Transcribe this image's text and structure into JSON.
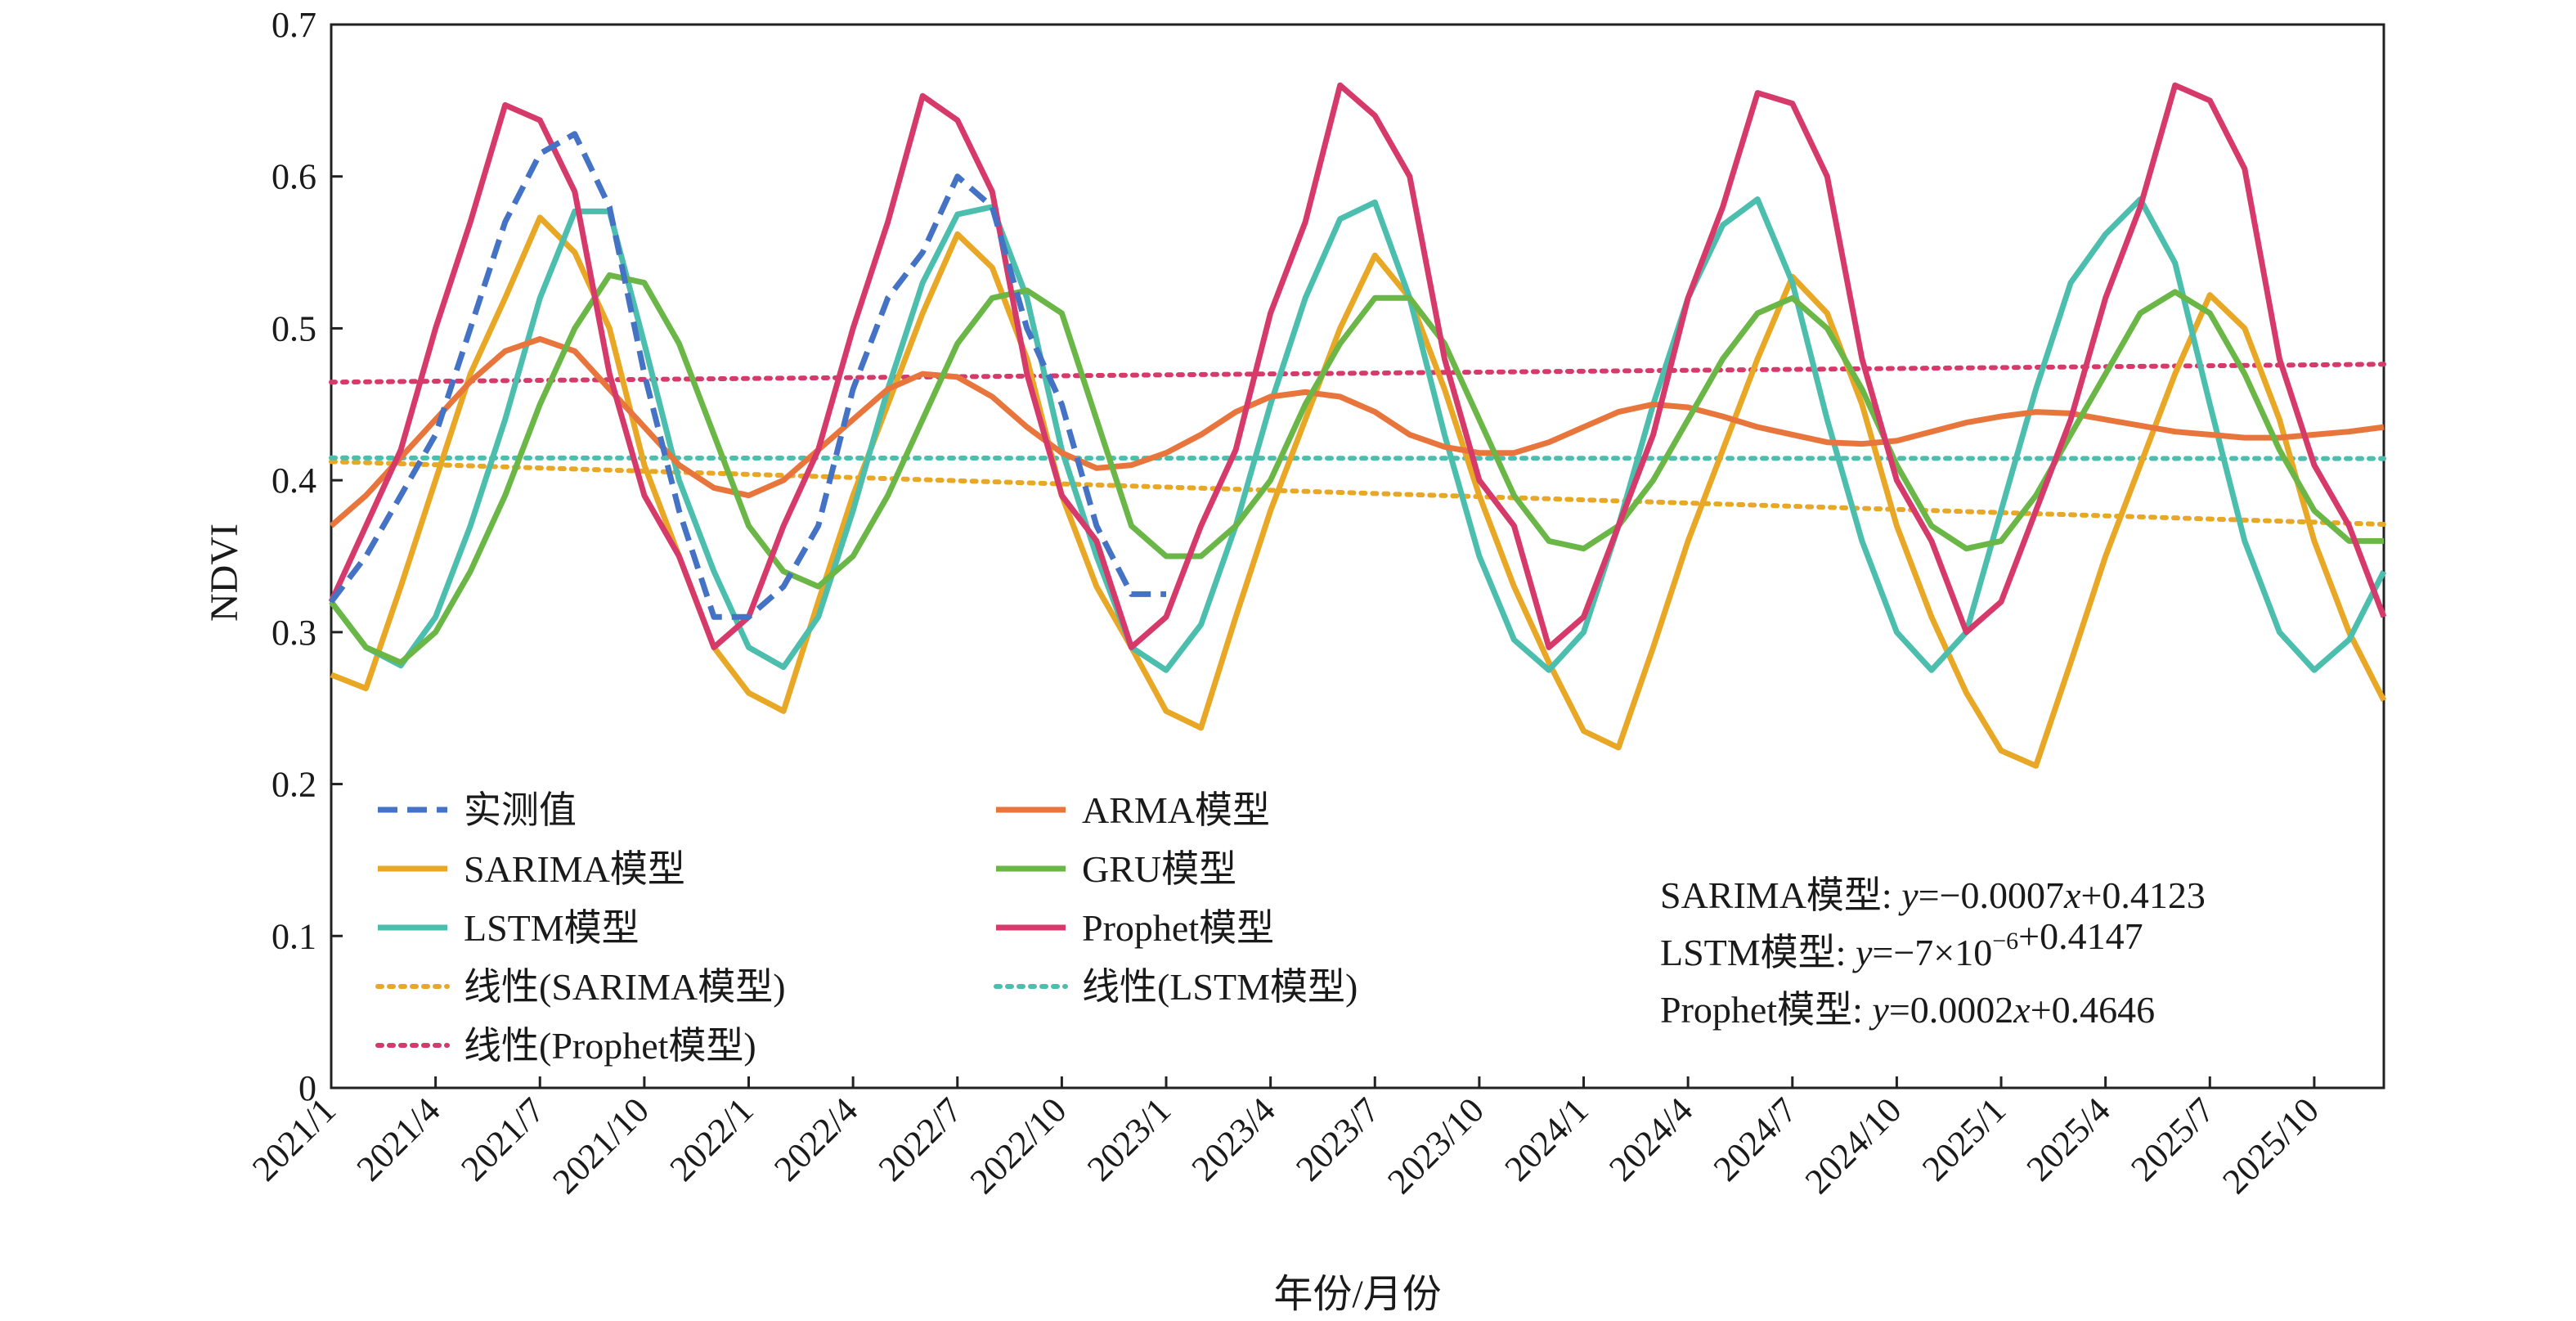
{
  "chart_data": {
    "type": "line",
    "xlabel": "年份/月份",
    "ylabel": "NDVI",
    "ylim": [
      0,
      0.7
    ],
    "yticks": [
      "0",
      "0.1",
      "0.2",
      "0.3",
      "0.4",
      "0.5",
      "0.6",
      "0.7"
    ],
    "x_start": "2021/1",
    "x_end": "2025/12",
    "xtick_labels": [
      "2021/1",
      "2021/4",
      "2021/7",
      "2021/10",
      "2022/1",
      "2022/4",
      "2022/7",
      "2022/10",
      "2023/1",
      "2023/4",
      "2023/7",
      "2023/10",
      "2024/1",
      "2024/4",
      "2024/7",
      "2024/10",
      "2025/1",
      "2025/4",
      "2025/7",
      "2025/10"
    ],
    "grid": false,
    "legend_position": "bottom-left",
    "series": [
      {
        "name": "实测值",
        "color": "#4472C4",
        "style": "dashed",
        "x_start": "2021/1",
        "values": [
          0.32,
          0.35,
          0.39,
          0.43,
          0.5,
          0.57,
          0.615,
          0.628,
          0.58,
          0.47,
          0.38,
          0.31,
          0.31,
          0.33,
          0.37,
          0.46,
          0.52,
          0.55,
          0.6,
          0.58,
          0.5,
          0.45,
          0.37,
          0.325,
          0.325
        ]
      },
      {
        "name": "SARIMA模型",
        "color": "#E8A825",
        "style": "solid",
        "x_start": "2021/1",
        "values": [
          0.272,
          0.263,
          0.33,
          0.4,
          0.47,
          0.52,
          0.573,
          0.55,
          0.5,
          0.41,
          0.35,
          0.29,
          0.26,
          0.248,
          0.32,
          0.39,
          0.45,
          0.51,
          0.562,
          0.54,
          0.48,
          0.39,
          0.33,
          0.29,
          0.248,
          0.237,
          0.31,
          0.38,
          0.44,
          0.5,
          0.548,
          0.52,
          0.46,
          0.39,
          0.33,
          0.28,
          0.235,
          0.224,
          0.29,
          0.36,
          0.42,
          0.48,
          0.534,
          0.51,
          0.45,
          0.37,
          0.31,
          0.26,
          0.222,
          0.212,
          0.28,
          0.35,
          0.41,
          0.47,
          0.522,
          0.5,
          0.44,
          0.36,
          0.3,
          0.255
        ]
      },
      {
        "name": "LSTM模型",
        "color": "#4BBEAE",
        "style": "solid",
        "x_start": "2021/1",
        "values": [
          0.32,
          0.29,
          0.278,
          0.31,
          0.37,
          0.44,
          0.52,
          0.577,
          0.577,
          0.49,
          0.4,
          0.34,
          0.29,
          0.277,
          0.31,
          0.38,
          0.46,
          0.53,
          0.575,
          0.58,
          0.52,
          0.42,
          0.35,
          0.29,
          0.275,
          0.305,
          0.37,
          0.45,
          0.52,
          0.572,
          0.583,
          0.52,
          0.43,
          0.35,
          0.295,
          0.275,
          0.3,
          0.37,
          0.45,
          0.52,
          0.568,
          0.585,
          0.53,
          0.44,
          0.36,
          0.3,
          0.275,
          0.3,
          0.38,
          0.46,
          0.53,
          0.562,
          0.585,
          0.543,
          0.45,
          0.36,
          0.3,
          0.275,
          0.295,
          0.34
        ]
      },
      {
        "name": "线性(SARIMA模型)",
        "color": "#E8A825",
        "style": "dotted",
        "x_start": "2021/1",
        "values": [
          0.4123,
          0.371
        ]
      },
      {
        "name": "线性(Prophet模型)",
        "color": "#D63A6A",
        "style": "dotted",
        "x_start": "2021/1",
        "values": [
          0.4646,
          0.4764
        ]
      },
      {
        "name": "ARMA模型",
        "color": "#E8763C",
        "style": "solid",
        "x_start": "2021/1",
        "values": [
          0.37,
          0.39,
          0.415,
          0.44,
          0.465,
          0.485,
          0.493,
          0.485,
          0.46,
          0.435,
          0.41,
          0.395,
          0.39,
          0.4,
          0.42,
          0.44,
          0.46,
          0.47,
          0.468,
          0.455,
          0.435,
          0.418,
          0.408,
          0.41,
          0.418,
          0.43,
          0.445,
          0.455,
          0.458,
          0.455,
          0.445,
          0.43,
          0.422,
          0.418,
          0.418,
          0.425,
          0.435,
          0.445,
          0.45,
          0.448,
          0.442,
          0.435,
          0.43,
          0.425,
          0.424,
          0.426,
          0.432,
          0.438,
          0.442,
          0.445,
          0.444,
          0.44,
          0.436,
          0.432,
          0.43,
          0.428,
          0.428,
          0.43,
          0.432,
          0.435
        ]
      },
      {
        "name": "GRU模型",
        "color": "#6AB646",
        "style": "solid",
        "x_start": "2021/1",
        "values": [
          0.32,
          0.29,
          0.28,
          0.3,
          0.34,
          0.39,
          0.45,
          0.5,
          0.535,
          0.53,
          0.49,
          0.43,
          0.37,
          0.34,
          0.33,
          0.35,
          0.39,
          0.44,
          0.49,
          0.52,
          0.525,
          0.51,
          0.44,
          0.37,
          0.35,
          0.35,
          0.37,
          0.4,
          0.45,
          0.49,
          0.52,
          0.52,
          0.49,
          0.44,
          0.39,
          0.36,
          0.355,
          0.37,
          0.4,
          0.44,
          0.48,
          0.51,
          0.52,
          0.5,
          0.46,
          0.41,
          0.37,
          0.355,
          0.36,
          0.39,
          0.43,
          0.47,
          0.51,
          0.524,
          0.51,
          0.47,
          0.42,
          0.38,
          0.36,
          0.36
        ]
      },
      {
        "name": "Prophet模型",
        "color": "#D63A6A",
        "style": "solid",
        "x_start": "2021/1",
        "values": [
          0.32,
          0.37,
          0.42,
          0.5,
          0.57,
          0.647,
          0.637,
          0.59,
          0.47,
          0.39,
          0.35,
          0.29,
          0.31,
          0.37,
          0.42,
          0.5,
          0.57,
          0.653,
          0.637,
          0.59,
          0.47,
          0.39,
          0.36,
          0.29,
          0.31,
          0.37,
          0.42,
          0.51,
          0.57,
          0.66,
          0.64,
          0.6,
          0.48,
          0.4,
          0.37,
          0.29,
          0.31,
          0.37,
          0.43,
          0.52,
          0.58,
          0.655,
          0.648,
          0.6,
          0.48,
          0.4,
          0.36,
          0.3,
          0.32,
          0.38,
          0.44,
          0.52,
          0.58,
          0.66,
          0.65,
          0.605,
          0.48,
          0.41,
          0.37,
          0.31
        ]
      },
      {
        "name": "线性(LSTM模型)",
        "color": "#4BBEAE",
        "style": "dotted",
        "x_start": "2021/1",
        "values": [
          0.4147,
          0.4143
        ]
      }
    ],
    "annotations": [
      {
        "label": "SARIMA模型: ",
        "y": "y",
        "eq": "=−0.0007",
        "x": "x",
        "rest": "+0.4123"
      },
      {
        "label": "LSTM模型: ",
        "y": "y",
        "eq": "=−7×10",
        "sup": "−6",
        "x": "",
        "rest": "+0.4147"
      },
      {
        "label": "Prophet模型: ",
        "y": "y",
        "eq": "=0.0002",
        "x": "x",
        "rest": "+0.4646"
      }
    ]
  }
}
